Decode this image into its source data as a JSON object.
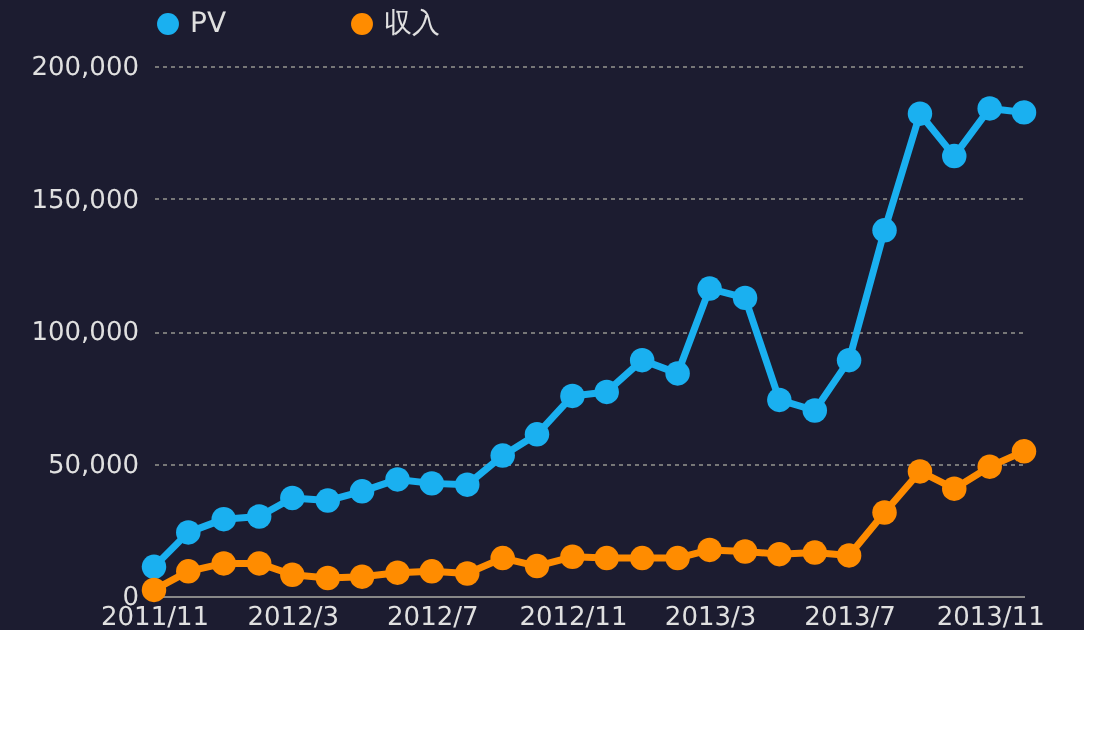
{
  "chart_data": {
    "type": "line",
    "x": [
      "2011-11",
      "2011-12",
      "2012-01",
      "2012-02",
      "2012-03",
      "2012-04",
      "2012-05",
      "2012-06",
      "2012-07",
      "2012-08",
      "2012-09",
      "2012-10",
      "2012-11",
      "2012-12",
      "2013-01",
      "2013-02",
      "2013-03",
      "2013-04",
      "2013-05",
      "2013-06",
      "2013-07",
      "2013-08",
      "2013-09",
      "2013-10",
      "2013-11",
      "2013-12"
    ],
    "series": [
      {
        "name": "PV",
        "color": "#1ab0f0",
        "values": [
          11000,
          24000,
          29000,
          30000,
          37000,
          36000,
          39500,
          44000,
          42500,
          42000,
          53000,
          61000,
          75500,
          77000,
          89000,
          84000,
          116000,
          112500,
          74000,
          70000,
          89000,
          138000,
          182000,
          166000,
          184000,
          182500
        ]
      },
      {
        "name": "収入",
        "color": "#ff8c00",
        "values": [
          2300,
          9300,
          12300,
          12300,
          8000,
          6800,
          7300,
          8800,
          9300,
          8500,
          14300,
          11300,
          14800,
          14300,
          14300,
          14300,
          17400,
          16800,
          15800,
          16400,
          15300,
          31500,
          47000,
          40500,
          48800,
          54600
        ]
      }
    ],
    "xlim": [
      "2011-11",
      "2013-12"
    ],
    "xticks": [
      {
        "value": "2011-11",
        "label": "2011/11"
      },
      {
        "value": "2012-03",
        "label": "2012/3"
      },
      {
        "value": "2012-07",
        "label": "2012/7"
      },
      {
        "value": "2012-11",
        "label": "2012/11"
      },
      {
        "value": "2013-03",
        "label": "2013/3"
      },
      {
        "value": "2013-07",
        "label": "2013/7"
      },
      {
        "value": "2013-11",
        "label": "2013/11"
      }
    ],
    "ylim": [
      0,
      200000
    ],
    "yticks": [
      0,
      {
        "value": 50000,
        "label": "50,000"
      },
      {
        "value": 100000,
        "label": "100,000"
      },
      {
        "value": 150000,
        "label": "150,000"
      },
      {
        "value": 200000,
        "label": "200,000"
      }
    ],
    "grid": "y",
    "legend": "top",
    "marker": "circle",
    "line_style": "solid"
  }
}
